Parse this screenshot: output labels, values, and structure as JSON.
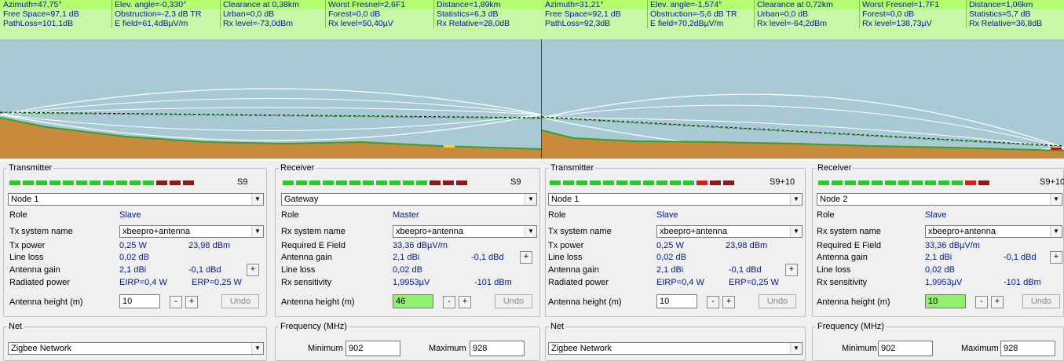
{
  "left": {
    "info": {
      "azimuth": "Azimuth=47,75°",
      "elev_angle": "Elev. angle=-0,330°",
      "clearance": "Clearance at 0,38km",
      "worst_fresnel": "Worst Fresnel=2,6F1",
      "distance": "Distance=1,89km",
      "free_space": "Free Space=97,1 dB",
      "obstruction": "Obstruction=-2,3 dB TR",
      "urban": "Urban=0,0 dB",
      "forest": "Forest=0,0 dB",
      "statistics": "Statistics=6,3 dB",
      "pathloss": "PathLoss=101,1dB",
      "e_field": "E field=61,4dBµV/m",
      "rx_level_dbm": "Rx level=-73,0dBm",
      "rx_level_uv": "Rx level=50,40µV",
      "rx_relative": "Rx Relative=28,0dB"
    },
    "transmitter": {
      "legend": "Transmitter",
      "signal": "S9",
      "unit": "Node 1",
      "role_label": "Role",
      "role": "Slave",
      "system_label": "Tx system name",
      "system": "xbeepro+antenna",
      "power_label": "Tx power",
      "power_w": "0,25 W",
      "power_dbm": "23,98 dBm",
      "line_loss_label": "Line loss",
      "line_loss": "0,02 dB",
      "gain_label": "Antenna gain",
      "gain_dbi": "2,1 dBi",
      "gain_dbd": "-0,1 dBd",
      "radiated_label": "Radiated power",
      "eirp": "EIRP=0,4 W",
      "erp": "ERP=0,25 W",
      "height_label": "Antenna height (m)",
      "height": "10",
      "undo": "Undo"
    },
    "receiver": {
      "legend": "Receiver",
      "signal": "S9",
      "unit": "Gateway",
      "role_label": "Role",
      "role": "Master",
      "system_label": "Rx system name",
      "system": "xbeepro+antenna",
      "field_label": "Required E Field",
      "field": "33,36 dBµV/m",
      "gain_label": "Antenna gain",
      "gain_dbi": "2,1 dBi",
      "gain_dbd": "-0,1 dBd",
      "line_loss_label": "Line loss",
      "line_loss": "0,02 dB",
      "sens_label": "Rx sensitivity",
      "sens_uv": "1,9953µV",
      "sens_dbm": "-101 dBm",
      "height_label": "Antenna height (m)",
      "height": "46",
      "undo": "Undo"
    },
    "net": {
      "legend": "Net",
      "value": "Zigbee Network"
    },
    "frequency": {
      "legend": "Frequency (MHz)",
      "min_label": "Minimum",
      "min": "902",
      "max_label": "Maximum",
      "max": "928"
    }
  },
  "right": {
    "info": {
      "azimuth": "Azimuth=31,21°",
      "elev_angle": "Elev. angle=-1,574°",
      "clearance": "Clearance at 0,72km",
      "worst_fresnel": "Worst Fresnel=1,7F1",
      "distance": "Distance=1,06km",
      "free_space": "Free Space=92,1 dB",
      "obstruction": "Obstruction=-5,6 dB TR",
      "urban": "Urban=0,0 dB",
      "forest": "Forest=0,0 dB",
      "statistics": "Statistics=5,7 dB",
      "pathloss": "PathLoss=92,3dB",
      "e_field": "E field=70,2dBµV/m",
      "rx_level_dbm": "Rx level=-64,2dBm",
      "rx_level_uv": "Rx level=138,73µV",
      "rx_relative": "Rx Relative=36,8dB"
    },
    "transmitter": {
      "legend": "Transmitter",
      "signal": "S9+10",
      "unit": "Node 1",
      "role_label": "Role",
      "role": "Slave",
      "system_label": "Tx system name",
      "system": "xbeepro+antenna",
      "power_label": "Tx power",
      "power_w": "0,25 W",
      "power_dbm": "23,98 dBm",
      "line_loss_label": "Line loss",
      "line_loss": "0,02 dB",
      "gain_label": "Antenna gain",
      "gain_dbi": "2,1 dBi",
      "gain_dbd": "-0,1 dBd",
      "radiated_label": "Radiated power",
      "eirp": "EIRP=0,4 W",
      "erp": "ERP=0,25 W",
      "height_label": "Antenna height (m)",
      "height": "10",
      "undo": "Undo"
    },
    "receiver": {
      "legend": "Receiver",
      "signal": "S9+10",
      "unit": "Node 2",
      "role_label": "Role",
      "role": "Slave",
      "system_label": "Rx system name",
      "system": "xbeepro+antenna",
      "field_label": "Required E Field",
      "field": "33,36 dBµV/m",
      "gain_label": "Antenna gain",
      "gain_dbi": "2,1 dBi",
      "gain_dbd": "-0,1 dBd",
      "line_loss_label": "Line loss",
      "line_loss": "0,02 dB",
      "sens_label": "Rx sensitivity",
      "sens_uv": "1,9953µV",
      "sens_dbm": "-101 dBm",
      "height_label": "Antenna height (m)",
      "height": "10",
      "undo": "Undo"
    },
    "net": {
      "legend": "Net",
      "value": "Zigbee Network"
    },
    "frequency": {
      "legend": "Frequency (MHz)",
      "min_label": "Minimum",
      "min": "902",
      "max_label": "Maximum",
      "max": "928"
    }
  },
  "colors": {
    "info_bg": "#c8f7a8",
    "sky": "#a9c9d4",
    "ground": "#c98a3e",
    "grass": "#3aa02a",
    "meter_green": "#2bc72b",
    "meter_red": "#b02020",
    "height_green": "#90f070"
  }
}
